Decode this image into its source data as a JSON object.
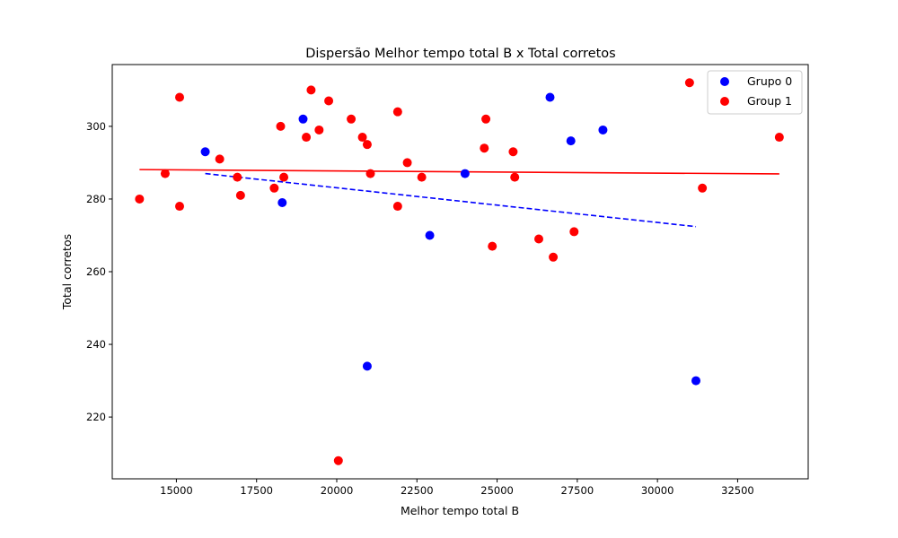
{
  "chart_data": {
    "type": "scatter",
    "title": "Dispersão Melhor tempo total B x Total corretos",
    "xlabel": "Melhor tempo total B",
    "ylabel": "Total corretos",
    "xlim": [
      13000,
      34700
    ],
    "ylim": [
      203,
      317
    ],
    "xticks": [
      15000,
      17500,
      20000,
      22500,
      25000,
      27500,
      30000,
      32500
    ],
    "yticks": [
      220,
      240,
      260,
      280,
      300
    ],
    "grid": false,
    "legend_position": "top-right",
    "series": [
      {
        "name": "Grupo 0",
        "color": "#0000ff",
        "points": [
          {
            "x": 15900,
            "y": 293
          },
          {
            "x": 18300,
            "y": 279
          },
          {
            "x": 18950,
            "y": 302
          },
          {
            "x": 20950,
            "y": 234
          },
          {
            "x": 22900,
            "y": 270
          },
          {
            "x": 24000,
            "y": 287
          },
          {
            "x": 26650,
            "y": 308
          },
          {
            "x": 27300,
            "y": 296
          },
          {
            "x": 28300,
            "y": 299
          },
          {
            "x": 31200,
            "y": 230
          }
        ],
        "trend": {
          "x": [
            15900,
            31200
          ],
          "y": [
            287.0,
            272.4
          ],
          "style": "dashed"
        }
      },
      {
        "name": "Group 1",
        "color": "#ff0000",
        "points": [
          {
            "x": 13850,
            "y": 280
          },
          {
            "x": 14650,
            "y": 287
          },
          {
            "x": 15100,
            "y": 278
          },
          {
            "x": 15100,
            "y": 308
          },
          {
            "x": 16350,
            "y": 291
          },
          {
            "x": 16900,
            "y": 286
          },
          {
            "x": 17000,
            "y": 281
          },
          {
            "x": 18050,
            "y": 283
          },
          {
            "x": 18250,
            "y": 300
          },
          {
            "x": 18350,
            "y": 286
          },
          {
            "x": 19050,
            "y": 297
          },
          {
            "x": 19200,
            "y": 310
          },
          {
            "x": 19450,
            "y": 299
          },
          {
            "x": 19750,
            "y": 307
          },
          {
            "x": 20050,
            "y": 208
          },
          {
            "x": 20450,
            "y": 302
          },
          {
            "x": 20800,
            "y": 297
          },
          {
            "x": 20950,
            "y": 295
          },
          {
            "x": 21050,
            "y": 287
          },
          {
            "x": 21900,
            "y": 304
          },
          {
            "x": 21900,
            "y": 278
          },
          {
            "x": 22200,
            "y": 290
          },
          {
            "x": 22650,
            "y": 286
          },
          {
            "x": 24600,
            "y": 294
          },
          {
            "x": 24650,
            "y": 302
          },
          {
            "x": 24850,
            "y": 267
          },
          {
            "x": 25500,
            "y": 293
          },
          {
            "x": 25550,
            "y": 286
          },
          {
            "x": 26300,
            "y": 269
          },
          {
            "x": 26750,
            "y": 264
          },
          {
            "x": 27400,
            "y": 271
          },
          {
            "x": 31000,
            "y": 312
          },
          {
            "x": 31400,
            "y": 283
          },
          {
            "x": 33800,
            "y": 297
          }
        ],
        "trend": {
          "x": [
            13850,
            33800
          ],
          "y": [
            288.1,
            286.9
          ],
          "style": "solid"
        }
      }
    ]
  }
}
